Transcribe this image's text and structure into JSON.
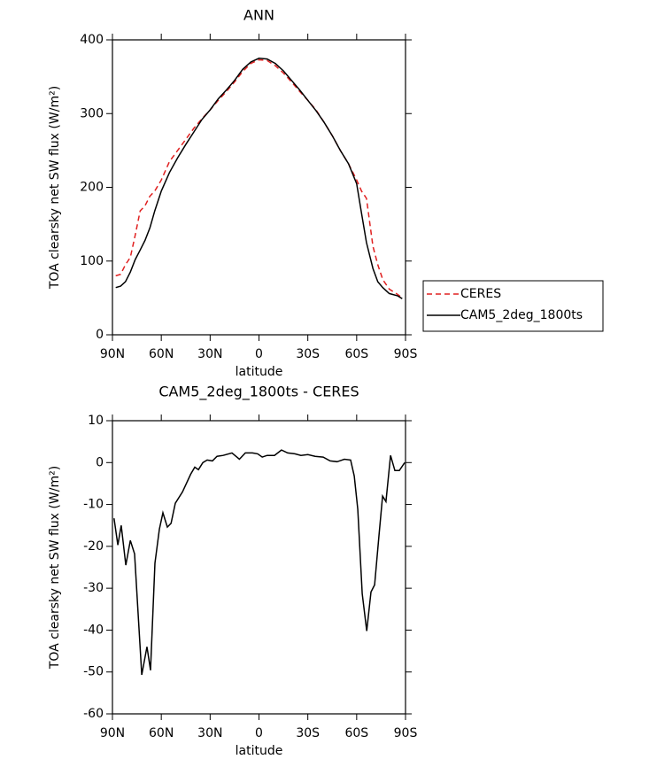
{
  "chart_data": [
    {
      "type": "line",
      "title": "ANN",
      "x_label": "latitude",
      "y_label": "TOA clearsky net SW flux (W/m²)",
      "x": [
        88,
        85,
        82,
        79,
        76,
        73,
        70,
        67,
        64,
        60,
        55,
        50,
        45,
        40,
        35,
        30,
        25,
        20,
        15,
        10,
        5,
        0,
        -5,
        -10,
        -15,
        -20,
        -25,
        -30,
        -35,
        -40,
        -45,
        -50,
        -55,
        -60,
        -63,
        -66,
        -70,
        -73,
        -76,
        -80,
        -85,
        -88
      ],
      "series": [
        {
          "name": "CERES",
          "color": "#e02020",
          "dash": true,
          "values": [
            80,
            82,
            95,
            105,
            135,
            168,
            175,
            188,
            195,
            210,
            235,
            250,
            265,
            280,
            293,
            305,
            318,
            330,
            343,
            357,
            368,
            373,
            372,
            365,
            355,
            343,
            330,
            318,
            305,
            288,
            270,
            250,
            232,
            210,
            195,
            185,
            120,
            95,
            75,
            62,
            55,
            50
          ]
        },
        {
          "name": "CAM5_2deg_1800ts",
          "color": "#000000",
          "dash": false,
          "values": [
            64,
            66,
            72,
            85,
            102,
            115,
            128,
            145,
            168,
            195,
            220,
            240,
            258,
            275,
            292,
            305,
            320,
            332,
            345,
            360,
            370,
            375,
            374,
            368,
            358,
            345,
            332,
            318,
            304,
            288,
            270,
            250,
            232,
            205,
            165,
            125,
            90,
            72,
            64,
            56,
            53,
            49
          ]
        }
      ],
      "xlim": [
        90,
        -90
      ],
      "xticks": [
        {
          "value": 90,
          "label": "90N"
        },
        {
          "value": 60,
          "label": "60N"
        },
        {
          "value": 30,
          "label": "30N"
        },
        0,
        {
          "value": -30,
          "label": "30S"
        },
        {
          "value": -60,
          "label": "60S"
        },
        {
          "value": -90,
          "label": "90S"
        }
      ],
      "ylim": [
        0,
        400
      ],
      "yticks": [
        0,
        100,
        200,
        300,
        400
      ],
      "legend": "right"
    },
    {
      "type": "line",
      "title": "CAM5_2deg_1800ts - CERES",
      "x_label": "latitude",
      "y_label": "TOA clearsky net SW flux (W/m²)",
      "x": [
        89,
        86.7,
        84.6,
        81.8,
        79,
        76.4,
        72,
        68.8,
        66.6,
        63.9,
        61.2,
        59,
        56.3,
        54,
        51.4,
        47,
        42,
        39.4,
        37.2,
        34.5,
        31.8,
        28.6,
        25.8,
        22,
        16.6,
        12,
        8.4,
        4,
        0.8,
        -2,
        -5,
        -9.5,
        -13.8,
        -17.6,
        -22,
        -25.8,
        -30,
        -34.5,
        -39.4,
        -43.7,
        -48,
        -52.5,
        -56.3,
        -58.5,
        -60.7,
        -63.4,
        -66.2,
        -68.8,
        -71,
        -73.7,
        -75.9,
        -78,
        -80.8,
        -83.5,
        -86.2,
        -89.5
      ],
      "series": [
        {
          "color": "#000000",
          "dash": false,
          "values": [
            -13.3,
            -19.7,
            -15,
            -24.5,
            -18.6,
            -21.8,
            -50.7,
            -44,
            -49.6,
            -24,
            -15.9,
            -12,
            -15.4,
            -14.5,
            -9.7,
            -7,
            -2.8,
            -1.1,
            -1.7,
            0,
            0.6,
            0.4,
            1.5,
            1.7,
            2.3,
            0.8,
            2.3,
            2.3,
            2.1,
            1.3,
            1.7,
            1.7,
            3,
            2.3,
            2.1,
            1.7,
            1.9,
            1.5,
            1.3,
            0.4,
            0.2,
            0.8,
            0.6,
            -3.2,
            -11.2,
            -31.3,
            -40.2,
            -30.9,
            -29.2,
            -17.5,
            -8,
            -9.3,
            1.7,
            -1.9,
            -1.9,
            0
          ]
        }
      ],
      "xlim": [
        90,
        -90
      ],
      "xticks": [
        {
          "value": 90,
          "label": "90N"
        },
        {
          "value": 60,
          "label": "60N"
        },
        {
          "value": 30,
          "label": "30N"
        },
        0,
        {
          "value": -30,
          "label": "30S"
        },
        {
          "value": -60,
          "label": "60S"
        },
        {
          "value": -90,
          "label": "90S"
        }
      ],
      "ylim": [
        -60,
        10
      ],
      "yticks": [
        -60,
        -50,
        -40,
        -30,
        -20,
        -10,
        0,
        10
      ]
    }
  ]
}
